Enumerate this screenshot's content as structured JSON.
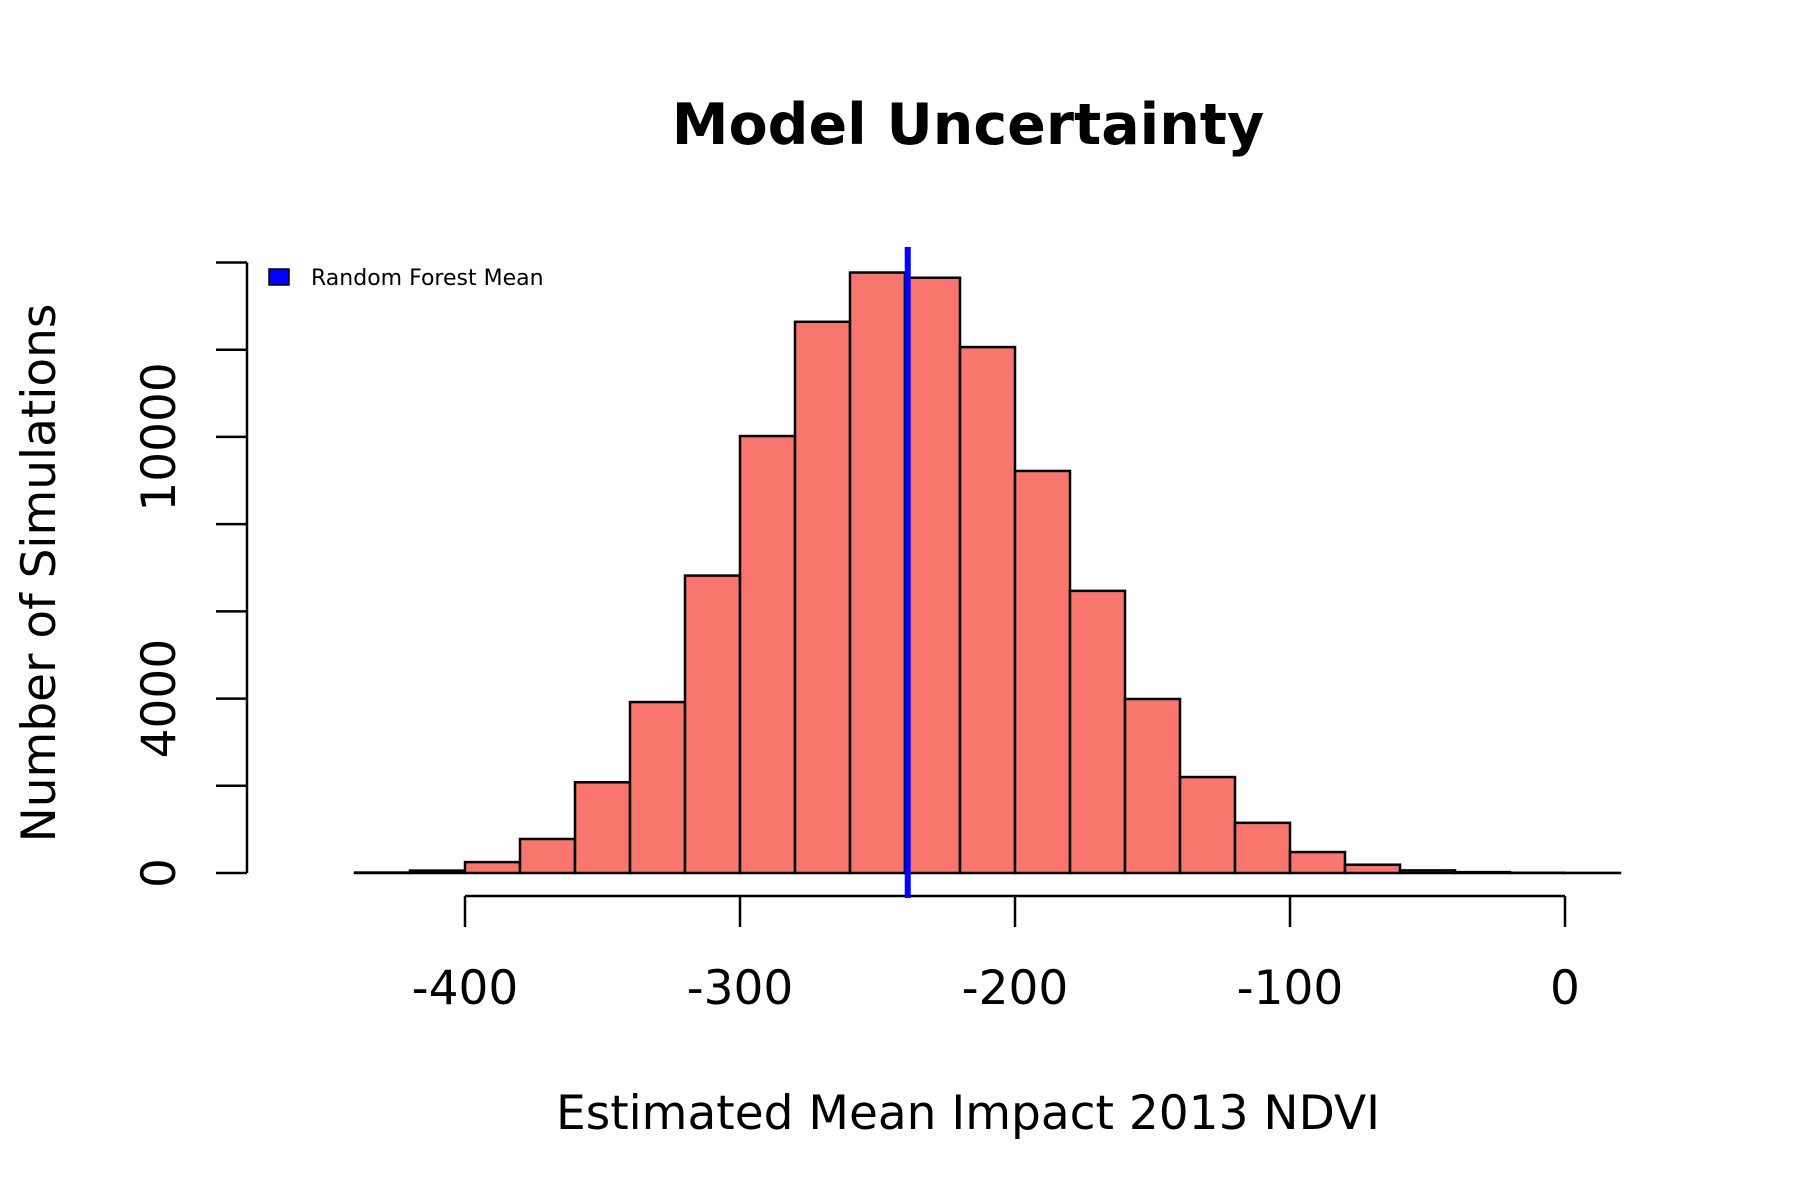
{
  "chart_data": {
    "type": "bar",
    "title": "Model Uncertainty",
    "xlabel": "Estimated Mean Impact 2013 NDVI",
    "ylabel": "Number of Simulations",
    "bin_edges": [
      -460,
      -440,
      -420,
      -400,
      -380,
      -360,
      -340,
      -320,
      -300,
      -280,
      -260,
      -240,
      -220,
      -200,
      -180,
      -160,
      -140,
      -120,
      -100,
      -80,
      -60,
      -40,
      -20,
      0,
      20
    ],
    "values": [
      0,
      10,
      55,
      250,
      780,
      2080,
      3920,
      6820,
      10020,
      12640,
      13770,
      13650,
      12060,
      9220,
      6470,
      3990,
      2200,
      1150,
      480,
      190,
      60,
      20,
      5,
      2
    ],
    "xlim": [
      -460,
      20
    ],
    "ylim": [
      0,
      14000
    ],
    "x_ticks": [
      -400,
      -300,
      -200,
      -100,
      0
    ],
    "y_ticks": [
      0,
      2000,
      4000,
      6000,
      8000,
      10000,
      12000,
      14000
    ],
    "y_tick_labels": [
      "0",
      "",
      "4000",
      "",
      "",
      "10000",
      "",
      ""
    ],
    "vline": {
      "x": -239,
      "color": "#0000ff"
    },
    "bar_color": "#f8766d",
    "legend": {
      "position": "top-left",
      "label": "Random Forest Mean",
      "color": "#0000ff"
    },
    "grid": false
  }
}
